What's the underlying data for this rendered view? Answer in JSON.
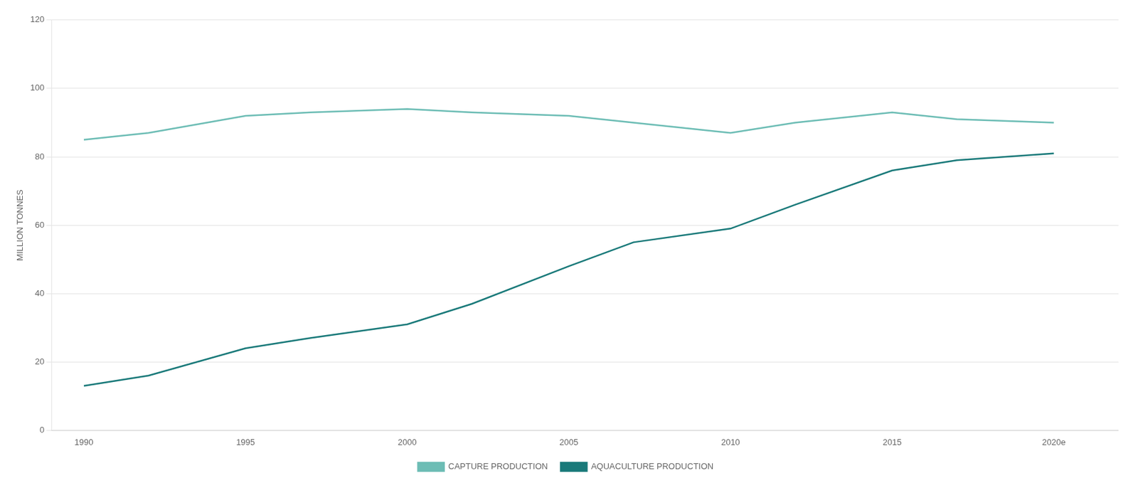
{
  "chart_data": {
    "type": "line",
    "ylabel": "MILLION TONNES",
    "x": [
      1990,
      1992,
      1995,
      1997,
      2000,
      2002,
      2005,
      2007,
      2010,
      2012,
      2015,
      2017,
      2020
    ],
    "series": [
      {
        "name": "CAPTURE PRODUCTION",
        "color": "#6dbdb5",
        "values": [
          85,
          87,
          92,
          93,
          94,
          93,
          92,
          90,
          87,
          90,
          93,
          91,
          90
        ]
      },
      {
        "name": "AQUACULTURE PRODUCTION",
        "color": "#1a7a7a",
        "values": [
          13,
          16,
          24,
          27,
          31,
          37,
          48,
          55,
          59,
          66,
          76,
          79,
          81
        ]
      }
    ],
    "xlim": [
      1989,
      2022
    ],
    "xticks": [
      1990,
      1995,
      2000,
      2005,
      2010,
      2015,
      {
        "value": 2020,
        "label": "2020e"
      }
    ],
    "ylim": [
      0,
      120
    ],
    "yticks": [
      0,
      20,
      40,
      60,
      80,
      100,
      120
    ],
    "grid": "y",
    "legend": "bottom"
  }
}
